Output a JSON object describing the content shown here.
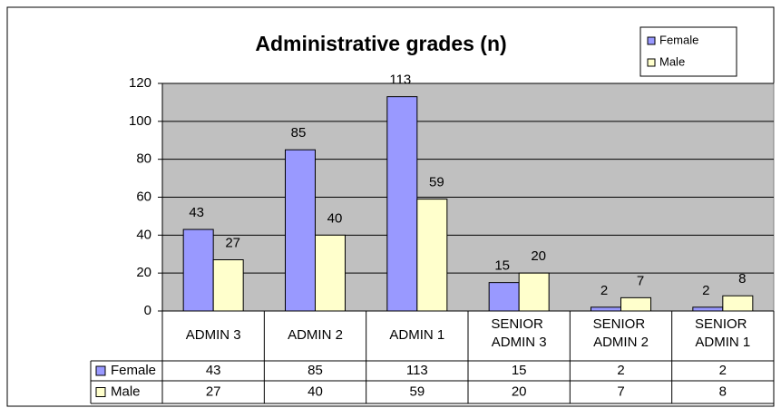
{
  "chart_data": {
    "type": "bar",
    "title": "Administrative grades (n)",
    "categories": [
      "ADMIN 3",
      "ADMIN 2",
      "ADMIN 1",
      "SENIOR ADMIN 3",
      "SENIOR ADMIN 2",
      "SENIOR ADMIN 1"
    ],
    "series": [
      {
        "name": "Female",
        "color": "#9999ff",
        "values": [
          43,
          85,
          113,
          15,
          2,
          2
        ]
      },
      {
        "name": "Male",
        "color": "#ffffcc",
        "values": [
          27,
          40,
          59,
          20,
          7,
          8
        ]
      }
    ],
    "ylim": [
      0,
      120
    ],
    "yticks": [
      0,
      20,
      40,
      60,
      80,
      100,
      120
    ],
    "grid": true,
    "legend": "top-right",
    "data_table": true
  }
}
